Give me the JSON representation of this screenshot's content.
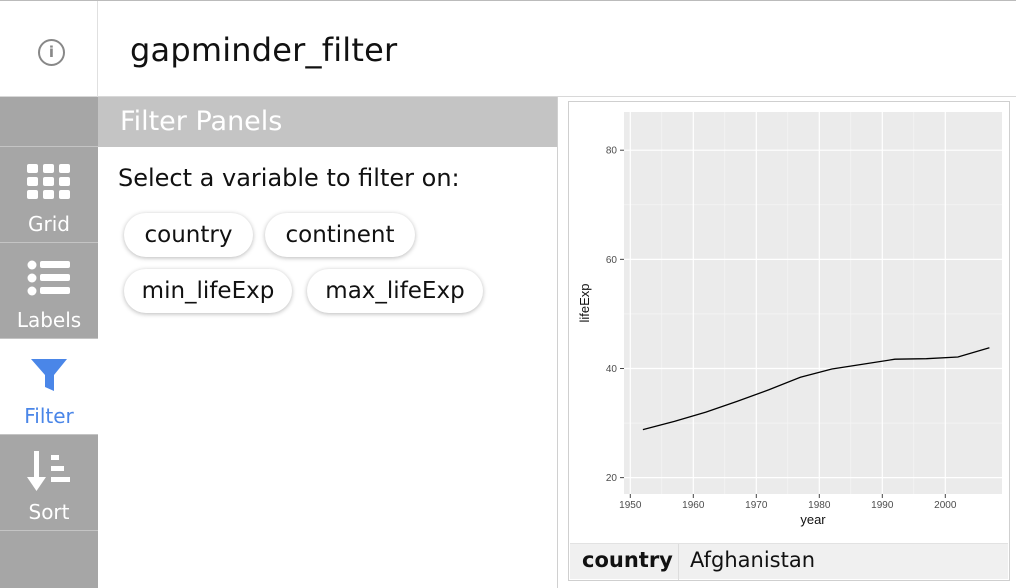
{
  "app": {
    "title": "gapminder_filter"
  },
  "header": {
    "info_icon": "info-icon"
  },
  "sidebar": {
    "items": [
      {
        "label": "Grid",
        "icon": "grid-icon",
        "active": false
      },
      {
        "label": "Labels",
        "icon": "list-icon",
        "active": false
      },
      {
        "label": "Filter",
        "icon": "filter-icon",
        "active": true
      },
      {
        "label": "Sort",
        "icon": "sort-icon",
        "active": false
      }
    ]
  },
  "filter_panel": {
    "title": "Filter Panels",
    "prompt": "Select a variable to filter on:",
    "variables": [
      "country",
      "continent",
      "min_lifeExp",
      "max_lifeExp"
    ]
  },
  "panel": {
    "facet_label_key": "country",
    "facet_label_value": "Afghanistan"
  },
  "colors": {
    "sidebar_bg": "#a6a6a6",
    "active_accent": "#4a86e8",
    "panel_header_bg": "#c4c4c4",
    "plot_bg": "#ebebeb"
  },
  "chart_data": {
    "type": "line",
    "xlabel": "year",
    "ylabel": "lifeExp",
    "xlim": [
      1949,
      2009
    ],
    "ylim": [
      17,
      87
    ],
    "x_ticks": [
      1950,
      1960,
      1970,
      1980,
      1990,
      2000
    ],
    "y_ticks": [
      20,
      40,
      60,
      80
    ],
    "grid": true,
    "series": [
      {
        "x": [
          1952,
          1957,
          1962,
          1967,
          1972,
          1977,
          1982,
          1987,
          1992,
          1997,
          2002,
          2007
        ],
        "y": [
          28.8,
          30.3,
          32.0,
          34.0,
          36.1,
          38.4,
          39.9,
          40.8,
          41.7,
          41.8,
          42.1,
          43.8
        ]
      }
    ]
  }
}
